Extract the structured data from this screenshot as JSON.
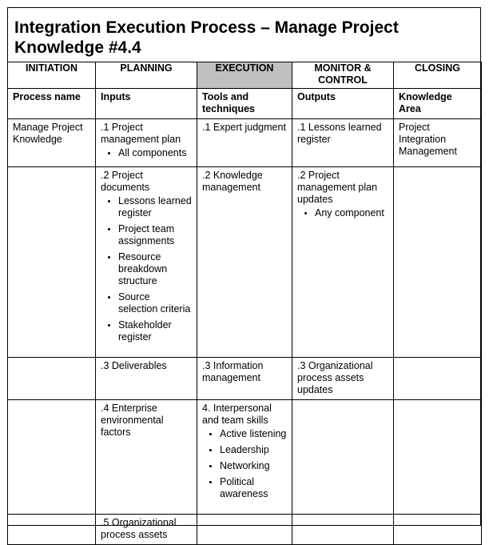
{
  "title": "Integration Execution Process – Manage Project Knowledge #4.4",
  "phases": [
    "INITIATION",
    "PLANNING",
    "EXECUTION",
    "MONITOR & CONTROL",
    "CLOSING"
  ],
  "active_phase": "EXECUTION",
  "active_color": "#c0c0c0",
  "headers": [
    "Process name",
    "Inputs",
    "Tools and techniques",
    "Outputs",
    "Knowledge Area"
  ],
  "rows": [
    {
      "process": "Manage Project Knowledge",
      "input": ".1 Project management plan",
      "input_items": [
        "All components"
      ],
      "tool": ".1 Expert judgment",
      "tool_items": [],
      "output": ".1 Lessons learned register",
      "output_items": [],
      "area": "Project Integration Management"
    },
    {
      "process": "",
      "input": ".2 Project documents",
      "input_items": [
        "Lessons learned register",
        "Project team assignments",
        "Resource breakdown structure",
        "Source selection criteria",
        "Stakeholder register"
      ],
      "tool": ".2 Knowledge management",
      "tool_items": [],
      "output": ".2 Project management plan updates",
      "output_items": [
        "Any component"
      ],
      "area": ""
    },
    {
      "process": "",
      "input": ".3 Deliverables",
      "input_items": [],
      "tool": ".3 Information management",
      "tool_items": [],
      "output": ".3  Organizational process assets updates",
      "output_items": [],
      "area": ""
    },
    {
      "process": "",
      "input": ".4 Enterprise environmental factors",
      "input_items": [],
      "tool": "4. Interpersonal and team skills",
      "tool_items": [
        "Active listening",
        "Leadership",
        "Networking",
        "Political awareness"
      ],
      "output": "",
      "output_items": [],
      "area": ""
    },
    {
      "process": "",
      "input": ".5 Organizational process assets",
      "input_items": [],
      "tool": "",
      "tool_items": [],
      "output": "",
      "output_items": [],
      "area": ""
    }
  ]
}
